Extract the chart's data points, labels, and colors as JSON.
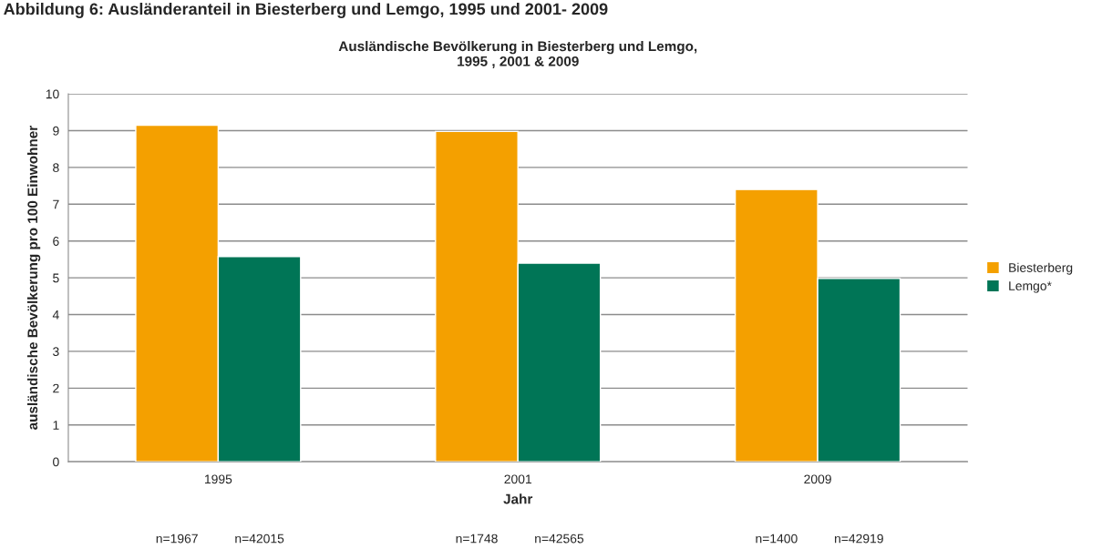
{
  "chart_data": {
    "type": "bar",
    "title": "Ausländische Bevölkerung in Biesterberg und Lemgo,\n1995 , 2001 & 2009",
    "xlabel": "Jahr",
    "ylabel": "ausländische Bevölkerung pro 100 Einwohner",
    "categories": [
      "1995",
      "2001",
      "2009"
    ],
    "series": [
      {
        "name": "Biesterberg",
        "color": "#f4a000",
        "values": [
          9.15,
          8.98,
          7.4
        ]
      },
      {
        "name": "Lemgo*",
        "color": "#007556",
        "values": [
          5.58,
          5.4,
          4.98
        ]
      }
    ],
    "ylim": [
      0,
      10
    ],
    "yticks": [
      0,
      1,
      2,
      3,
      4,
      5,
      6,
      7,
      8,
      9,
      10
    ],
    "grid": "y",
    "legend": "right",
    "annotations": [
      "Abbildung 6: Ausländeranteil in Biesterberg und Lemgo, 1995 und 2001- 2009",
      "n=1967",
      "n=42015",
      "n=1748",
      "n=42565",
      "n=1400",
      "n=42919"
    ]
  }
}
